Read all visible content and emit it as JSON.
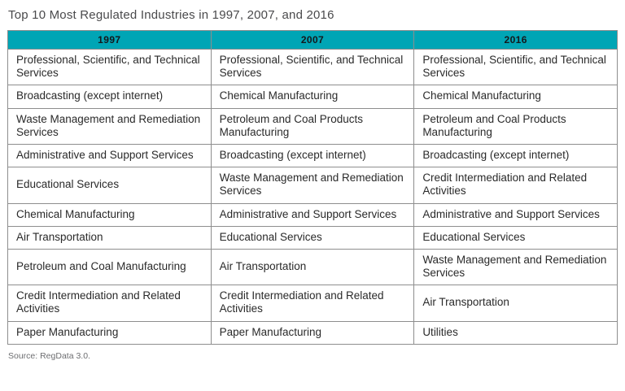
{
  "title": "Top 10 Most Regulated Industries in 1997, 2007, and 2016",
  "source": "Source: RegData 3.0.",
  "colors": {
    "header_bg": "#00a5b5",
    "border": "#8e8e8e",
    "title_text": "#4a4a4c",
    "body_text": "#2a2a2a",
    "source_text": "#6d6e71"
  },
  "chart_data": {
    "type": "table",
    "title": "Top 10 Most Regulated Industries in 1997, 2007, and 2016",
    "columns": [
      "1997",
      "2007",
      "2016"
    ],
    "rows": [
      [
        "Professional, Scientific, and Technical Services",
        "Professional, Scientific, and Technical Services",
        "Professional, Scientific, and Technical Services"
      ],
      [
        "Broadcasting (except internet)",
        "Chemical Manufacturing",
        "Chemical Manufacturing"
      ],
      [
        "Waste Management and Remediation Services",
        "Petroleum and Coal Products Manufacturing",
        "Petroleum and Coal Products Manufacturing"
      ],
      [
        "Administrative and Support Services",
        "Broadcasting (except internet)",
        "Broadcasting (except internet)"
      ],
      [
        "Educational Services",
        "Waste Management and Remediation Services",
        "Credit Intermediation and Related Activities"
      ],
      [
        "Chemical Manufacturing",
        "Administrative and Support Services",
        "Administrative and Support Services"
      ],
      [
        "Air Transportation",
        "Educational Services",
        "Educational Services"
      ],
      [
        "Petroleum and Coal Manufacturing",
        "Air Transportation",
        "Waste Management and Remediation Services"
      ],
      [
        "Credit Intermediation and Related Activities",
        "Credit Intermediation and Related Activities",
        "Air Transportation"
      ],
      [
        "Paper Manufacturing",
        "Paper Manufacturing",
        "Utilities"
      ]
    ],
    "legend": null,
    "grid": true,
    "notes": "Static ranked-list table; rank 1 at top of each year column"
  }
}
